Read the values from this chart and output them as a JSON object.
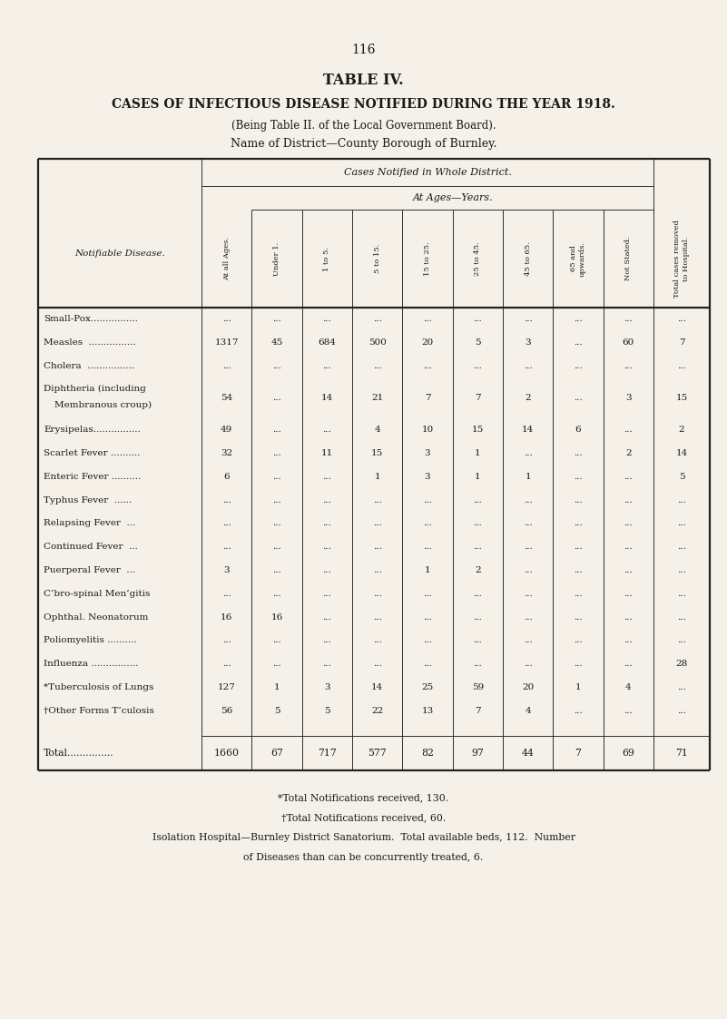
{
  "page_number": "116",
  "title_line1": "TABLE IV.",
  "title_line2": "CASES OF INFECTIOUS DISEASE NOTIFIED DURING THE YEAR 1918.",
  "title_line3": "(Being Table II. of the Local Government Board).",
  "title_line4": "Name of District—County Borough of Burnley.",
  "bg_color": "#f5f0e8",
  "text_color": "#1a1a1a",
  "col_header_top": "Cases Notified in Whole District.",
  "col_header_mid": "At Ages—Years.",
  "col_headers": [
    "At all Ages.",
    "Under 1.",
    "1 to 5.",
    "5 to 15.",
    "15 to 25.",
    "25 to 45.",
    "45 to 65.",
    "65 and\nupwards.",
    "Not Stated.",
    "Total cases removed\nto Hospital."
  ],
  "row_label_header": "Notifiable Disease.",
  "diseases": [
    "Small-Pox................",
    "Measles  ................",
    "Cholera  ................",
    "Diphtheria (including\n Membranous croup)",
    "Erysipelas................",
    "Scarlet Fever ..........",
    "Enteric Fever ..........",
    "Typhus Fever  ......",
    "Relapsing Fever  ...",
    "Continued Fever  ...",
    "Puerperal Fever  ...",
    "C’bro-spinal Men’gitis",
    "Ophthal. Neonatorum",
    "Poliomyelitis ..........",
    "Influenza ................",
    "*Tuberculosis of Lungs",
    "†Other Forms T’culosis"
  ],
  "data": [
    [
      "...",
      "...",
      "...",
      "...",
      "...",
      "...",
      "...",
      "...",
      "...",
      "..."
    ],
    [
      "1317",
      "45",
      "684",
      "500",
      "20",
      "5",
      "3",
      "...",
      "60",
      "7"
    ],
    [
      "...",
      "...",
      "...",
      "...",
      "...",
      "...",
      "...",
      "...",
      "...",
      "..."
    ],
    [
      "54",
      "...",
      "14",
      "21",
      "7",
      "7",
      "2",
      "...",
      "3",
      "15"
    ],
    [
      "49",
      "...",
      "...",
      "4",
      "10",
      "15",
      "14",
      "6",
      "...",
      "2"
    ],
    [
      "32",
      "...",
      "11",
      "15",
      "3",
      "1",
      "...",
      "...",
      "2",
      "14"
    ],
    [
      "6",
      "...",
      "...",
      "1",
      "3",
      "1",
      "1",
      "...",
      "...",
      "5"
    ],
    [
      "...",
      "...",
      "...",
      "...",
      "...",
      "...",
      "...",
      "...",
      "...",
      "..."
    ],
    [
      "...",
      "...",
      "...",
      "...",
      "...",
      "...",
      "...",
      "...",
      "...",
      "..."
    ],
    [
      "...",
      "...",
      "...",
      "...",
      "...",
      "...",
      "...",
      "...",
      "...",
      "..."
    ],
    [
      "3",
      "...",
      "...",
      "...",
      "1",
      "2",
      "...",
      "...",
      "...",
      "..."
    ],
    [
      "...",
      "...",
      "...",
      "...",
      "...",
      "...",
      "...",
      "...",
      "...",
      "..."
    ],
    [
      "16",
      "16",
      "...",
      "...",
      "...",
      "...",
      "...",
      "...",
      "...",
      "..."
    ],
    [
      "...",
      "...",
      "...",
      "...",
      "...",
      "...",
      "...",
      "...",
      "...",
      "..."
    ],
    [
      "...",
      "...",
      "...",
      "...",
      "...",
      "...",
      "...",
      "...",
      "...",
      "28"
    ],
    [
      "127",
      "1",
      "3",
      "14",
      "25",
      "59",
      "20",
      "1",
      "4",
      "..."
    ],
    [
      "56",
      "5",
      "5",
      "22",
      "13",
      "7",
      "4",
      "...",
      "...",
      "..."
    ]
  ],
  "total_row": [
    "Total...............",
    "1660",
    "67",
    "717",
    "577",
    "82",
    "97",
    "44",
    "7",
    "69",
    "71"
  ],
  "footnotes": [
    "*Total Notifications received, 130.",
    "†Total Notifications received, 60.",
    "Isolation Hospital—Burnley District Sanatorium.  Total available beds, 112.  Number",
    "of Diseases than can be concurrently treated, 6."
  ]
}
